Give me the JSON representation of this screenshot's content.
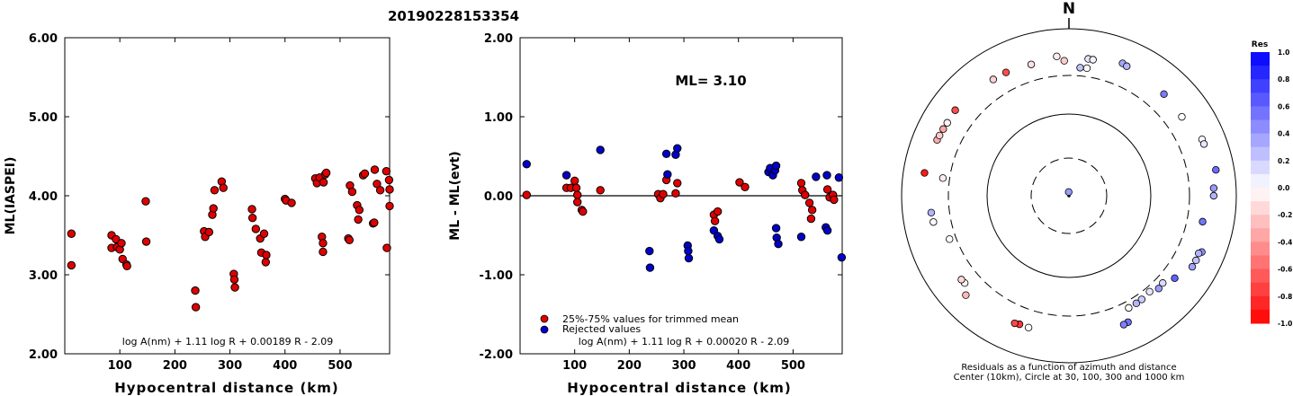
{
  "title": "20190228153354",
  "chart_data": [
    {
      "type": "scatter",
      "ylabel": "ML(IASPEI)",
      "xlabel": "Hypocentral distance (km)",
      "xlim": [
        0,
        590
      ],
      "ylim": [
        2.0,
        6.0
      ],
      "x_ticks": [
        "100",
        "200",
        "300",
        "400",
        "500"
      ],
      "x_tick_values": [
        100,
        200,
        300,
        400,
        500
      ],
      "y_ticks": [
        "2.00",
        "3.00",
        "4.00",
        "5.00",
        "6.00"
      ],
      "y_tick_values": [
        2,
        3,
        4,
        5,
        6
      ],
      "formula": "log A(nm) + 1.11 log R + 0.00189 R - 2.09",
      "series": [
        {
          "color": "#e00000",
          "points": [
            [
              12,
              3.52
            ],
            [
              12,
              3.12
            ],
            [
              85,
              3.5
            ],
            [
              85,
              3.34
            ],
            [
              93,
              3.45
            ],
            [
              95,
              3.35
            ],
            [
              100,
              3.32
            ],
            [
              103,
              3.4
            ],
            [
              105,
              3.2
            ],
            [
              112,
              3.13
            ],
            [
              113,
              3.11
            ],
            [
              147,
              3.93
            ],
            [
              148,
              3.42
            ],
            [
              237,
              2.8
            ],
            [
              238,
              2.59
            ],
            [
              253,
              3.55
            ],
            [
              255,
              3.48
            ],
            [
              262,
              3.54
            ],
            [
              268,
              3.76
            ],
            [
              270,
              3.84
            ],
            [
              272,
              4.07
            ],
            [
              285,
              4.18
            ],
            [
              288,
              4.1
            ],
            [
              307,
              3.01
            ],
            [
              308,
              2.94
            ],
            [
              309,
              2.84
            ],
            [
              340,
              3.83
            ],
            [
              341,
              3.72
            ],
            [
              347,
              3.58
            ],
            [
              355,
              3.46
            ],
            [
              357,
              3.28
            ],
            [
              362,
              3.52
            ],
            [
              365,
              3.16
            ],
            [
              366,
              3.25
            ],
            [
              400,
              3.96
            ],
            [
              402,
              3.94
            ],
            [
              412,
              3.91
            ],
            [
              455,
              4.22
            ],
            [
              458,
              4.16
            ],
            [
              463,
              4.23
            ],
            [
              467,
              3.48
            ],
            [
              469,
              3.4
            ],
            [
              469,
              3.29
            ],
            [
              470,
              4.17
            ],
            [
              473,
              4.27
            ],
            [
              475,
              4.29
            ],
            [
              515,
              3.46
            ],
            [
              517,
              3.44
            ],
            [
              518,
              4.13
            ],
            [
              522,
              4.05
            ],
            [
              531,
              3.88
            ],
            [
              533,
              3.7
            ],
            [
              535,
              3.82
            ],
            [
              542,
              4.26
            ],
            [
              545,
              4.28
            ],
            [
              560,
              3.65
            ],
            [
              562,
              3.66
            ],
            [
              563,
              4.33
            ],
            [
              567,
              4.15
            ],
            [
              573,
              4.07
            ],
            [
              584,
              4.31
            ],
            [
              585,
              3.34
            ],
            [
              589,
              4.2
            ],
            [
              590,
              4.08
            ],
            [
              590,
              3.87
            ]
          ]
        }
      ]
    },
    {
      "type": "scatter",
      "ylabel": "ML - ML(evt)",
      "xlabel": "Hypocentral distance (km)",
      "xlim": [
        0,
        590
      ],
      "ylim": [
        -2.0,
        2.0
      ],
      "x_ticks": [
        "100",
        "200",
        "300",
        "400",
        "500"
      ],
      "x_tick_values": [
        100,
        200,
        300,
        400,
        500
      ],
      "y_ticks": [
        "-2.00",
        "-1.00",
        "0.00",
        "1.00",
        "2.00"
      ],
      "y_tick_values": [
        -2,
        -1,
        0,
        1,
        2
      ],
      "annotation": "ML= 3.10",
      "formula": "log A(nm) + 1.11 log R + 0.00020 R - 2.09",
      "series": [
        {
          "name": "25%-75% values for trimmed mean",
          "color": "#e00000",
          "points": [
            [
              12,
              0.01
            ],
            [
              85,
              0.1
            ],
            [
              93,
              0.1
            ],
            [
              100,
              0.19
            ],
            [
              103,
              0.1
            ],
            [
              105,
              0.01
            ],
            [
              105,
              -0.08
            ],
            [
              113,
              -0.18
            ],
            [
              115,
              -0.2
            ],
            [
              147,
              0.07
            ],
            [
              253,
              0.02
            ],
            [
              257,
              -0.03
            ],
            [
              262,
              0.02
            ],
            [
              268,
              0.2
            ],
            [
              285,
              0.03
            ],
            [
              288,
              0.16
            ],
            [
              355,
              -0.24
            ],
            [
              357,
              -0.32
            ],
            [
              362,
              -0.2
            ],
            [
              402,
              0.17
            ],
            [
              412,
              0.11
            ],
            [
              515,
              0.16
            ],
            [
              517,
              0.07
            ],
            [
              522,
              0.01
            ],
            [
              530,
              -0.09
            ],
            [
              533,
              -0.29
            ],
            [
              535,
              -0.18
            ],
            [
              563,
              0.08
            ],
            [
              567,
              -0.02
            ],
            [
              573,
              0.01
            ],
            [
              575,
              -0.05
            ]
          ]
        },
        {
          "name": "Rejected values",
          "color": "#0000cc",
          "points": [
            [
              12,
              0.4
            ],
            [
              85,
              0.26
            ],
            [
              147,
              0.58
            ],
            [
              237,
              -0.7
            ],
            [
              238,
              -0.91
            ],
            [
              268,
              0.53
            ],
            [
              270,
              0.27
            ],
            [
              285,
              0.52
            ],
            [
              288,
              0.6
            ],
            [
              307,
              -0.63
            ],
            [
              308,
              -0.7
            ],
            [
              309,
              -0.79
            ],
            [
              355,
              -0.44
            ],
            [
              362,
              -0.51
            ],
            [
              365,
              -0.55
            ],
            [
              455,
              0.3
            ],
            [
              458,
              0.35
            ],
            [
              463,
              0.26
            ],
            [
              467,
              0.32
            ],
            [
              469,
              0.38
            ],
            [
              469,
              -0.41
            ],
            [
              470,
              -0.53
            ],
            [
              473,
              -0.61
            ],
            [
              515,
              -0.52
            ],
            [
              542,
              0.24
            ],
            [
              560,
              -0.4
            ],
            [
              562,
              0.26
            ],
            [
              563,
              -0.44
            ],
            [
              584,
              0.23
            ],
            [
              589,
              -0.78
            ]
          ]
        }
      ]
    },
    {
      "type": "scatter",
      "subtype": "polar",
      "north_label": "N",
      "caption_lines": [
        "Residuals as a function of azimuth and distance",
        "Center (10km), Circle at 30, 100, 300 and 1000 km"
      ],
      "colorbar_title": "Res",
      "colorbar_ticks": [
        "1.0",
        "0.8",
        "0.6",
        "0.4",
        "0.2",
        "0.0",
        "-0.2",
        "-0.4",
        "-0.6",
        "-0.8",
        "-1.0"
      ],
      "colorbar_tick_values": [
        1.0,
        0.8,
        0.6,
        0.4,
        0.2,
        0.0,
        -0.2,
        -0.4,
        -0.6,
        -0.8,
        -1.0
      ],
      "circles_km": [
        30,
        100,
        300,
        1000
      ],
      "points_polar": [
        {
          "az": 356,
          "dist_km": 12,
          "res": 0.4
        },
        {
          "az": 355,
          "dist_km": 593,
          "res": -0.08
        },
        {
          "az": 358,
          "dist_km": 521,
          "res": -0.2
        },
        {
          "az": 344,
          "dist_km": 544,
          "res": -0.12
        },
        {
          "az": 327,
          "dist_km": 575,
          "res": -0.18
        },
        {
          "az": 8,
          "dist_km": 568,
          "res": 0.1
        },
        {
          "az": 10,
          "dist_km": 567,
          "res": 0.05
        },
        {
          "az": 22,
          "dist_km": 637,
          "res": 0.35
        },
        {
          "az": 24,
          "dist_km": 622,
          "res": 0.3
        },
        {
          "az": 5,
          "dist_km": 423,
          "res": 0.24
        },
        {
          "az": 8,
          "dist_km": 427,
          "res": 0.02
        },
        {
          "az": 43,
          "dist_km": 580,
          "res": 0.52
        },
        {
          "az": 55,
          "dist_km": 558,
          "res": 0.0
        },
        {
          "az": 67,
          "dist_km": 660,
          "res": 0.03
        },
        {
          "az": 69,
          "dist_km": 660,
          "res": 0.1
        },
        {
          "az": 80,
          "dist_km": 728,
          "res": 0.58
        },
        {
          "az": 87,
          "dist_km": 665,
          "res": 0.4
        },
        {
          "az": 90,
          "dist_km": 662,
          "res": 0.3
        },
        {
          "az": 101,
          "dist_km": 533,
          "res": 0.54
        },
        {
          "az": 113,
          "dist_km": 655,
          "res": 0.44
        },
        {
          "az": 114,
          "dist_km": 620,
          "res": 0.3
        },
        {
          "az": 117,
          "dist_km": 630,
          "res": 0.24
        },
        {
          "az": 120,
          "dist_km": 626,
          "res": 0.36
        },
        {
          "az": 128,
          "dist_km": 504,
          "res": 0.62
        },
        {
          "az": 133,
          "dist_km": 415,
          "res": 0.15
        },
        {
          "az": 136,
          "dist_km": 429,
          "res": 0.4
        },
        {
          "az": 140,
          "dist_km": 373,
          "res": 0.1
        },
        {
          "az": 145,
          "dist_km": 393,
          "res": 0.2
        },
        {
          "az": 148,
          "dist_km": 398,
          "res": 0.3
        },
        {
          "az": 152,
          "dist_km": 400,
          "res": 0.02
        },
        {
          "az": 155,
          "dist_km": 587,
          "res": 0.56
        },
        {
          "az": 157,
          "dist_km": 595,
          "res": 0.5
        },
        {
          "az": 197,
          "dist_km": 563,
          "res": 0.02
        },
        {
          "az": 201,
          "dist_km": 560,
          "res": -0.78
        },
        {
          "az": 203,
          "dist_km": 573,
          "res": -0.72
        },
        {
          "az": 226,
          "dist_km": 641,
          "res": -0.28
        },
        {
          "az": 230,
          "dist_km": 532,
          "res": -0.04
        },
        {
          "az": 232,
          "dist_km": 538,
          "res": -0.15
        },
        {
          "az": 250,
          "dist_km": 398,
          "res": 0.0
        },
        {
          "az": 259,
          "dist_km": 562,
          "res": 0.02
        },
        {
          "az": 263,
          "dist_km": 572,
          "res": 0.3
        },
        {
          "az": 278,
          "dist_km": 401,
          "res": -0.08
        },
        {
          "az": 279,
          "dist_km": 684,
          "res": -0.9
        },
        {
          "az": 293,
          "dist_km": 639,
          "res": -0.33
        },
        {
          "az": 295,
          "dist_km": 632,
          "res": -0.2
        },
        {
          "az": 298,
          "dist_km": 626,
          "res": -0.35
        },
        {
          "az": 301,
          "dist_km": 620,
          "res": -0.05
        },
        {
          "az": 307,
          "dist_km": 627,
          "res": -0.7
        },
        {
          "az": 333,
          "dist_km": 571,
          "res": -0.7
        }
      ]
    }
  ]
}
